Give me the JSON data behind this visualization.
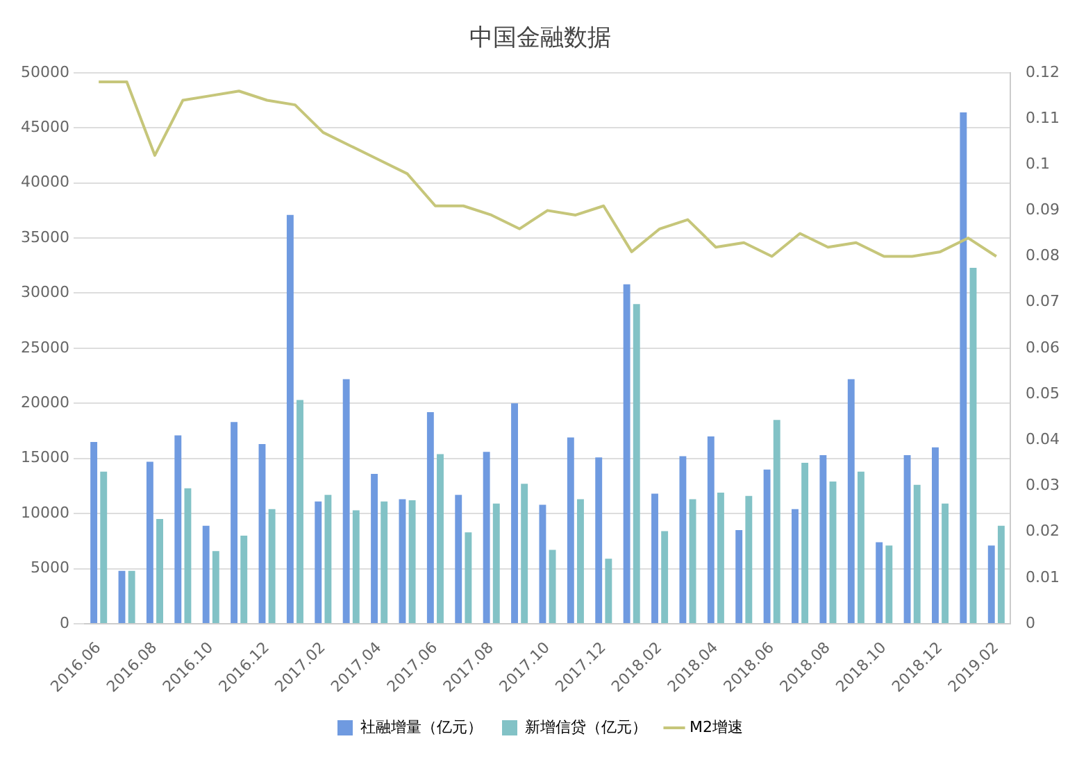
{
  "chart_data": {
    "type": "bar",
    "title": "中国金融数据",
    "categories": [
      "2016.06",
      null,
      "2016.08",
      null,
      "2016.10",
      null,
      "2016.12",
      null,
      "2017.02",
      null,
      "2017.04",
      null,
      "2017.06",
      null,
      "2017.08",
      null,
      "2017.10",
      null,
      "2017.12",
      null,
      "2018.02",
      null,
      "2018.04",
      null,
      "2018.06",
      null,
      "2018.08",
      null,
      "2018.10",
      null,
      "2018.12",
      null,
      "2019.02"
    ],
    "series": [
      {
        "name": "社融增量（亿元）",
        "color": "#6f9ae0",
        "values": [
          16500,
          4800,
          14700,
          17100,
          8900,
          18300,
          16300,
          37100,
          11100,
          22200,
          13600,
          11300,
          19200,
          11700,
          15600,
          20000,
          10800,
          16900,
          15100,
          30800,
          11800,
          15200,
          17000,
          8500,
          14000,
          10400,
          15300,
          22200,
          7400,
          15300,
          16000,
          46400,
          7100
        ]
      },
      {
        "name": "新增信贷（亿元）",
        "color": "#82c2c6",
        "values": [
          13800,
          4800,
          9500,
          12300,
          6600,
          8000,
          10400,
          20300,
          11700,
          10300,
          11100,
          11200,
          15400,
          8300,
          10900,
          12700,
          6700,
          11300,
          5900,
          29000,
          8400,
          11300,
          11900,
          11600,
          18500,
          14600,
          12900,
          13800,
          7100,
          12600,
          10900,
          32300,
          8900
        ]
      },
      {
        "name": "M2增速",
        "type": "line",
        "axis": "y2",
        "color": "#c6c67a",
        "values": [
          0.118,
          0.118,
          0.102,
          0.114,
          0.115,
          0.116,
          0.114,
          0.113,
          0.107,
          0.104,
          0.101,
          0.098,
          0.091,
          0.091,
          0.089,
          0.086,
          0.09,
          0.089,
          0.091,
          0.081,
          0.086,
          0.088,
          0.082,
          0.083,
          0.08,
          0.085,
          0.082,
          0.083,
          0.08,
          0.08,
          0.081,
          0.084,
          0.08
        ]
      }
    ],
    "ylim": [
      0,
      50000
    ],
    "yticks": [
      0,
      5000,
      10000,
      15000,
      20000,
      25000,
      30000,
      35000,
      40000,
      45000,
      50000
    ],
    "y2lim": [
      0,
      0.12
    ],
    "y2ticks": [
      0,
      0.01,
      0.02,
      0.03,
      0.04,
      0.05,
      0.06,
      0.07,
      0.08,
      0.09,
      0.1,
      0.11,
      0.12
    ],
    "grid": "y",
    "legend": "bottom",
    "marker": "none",
    "line_style": "solid"
  }
}
